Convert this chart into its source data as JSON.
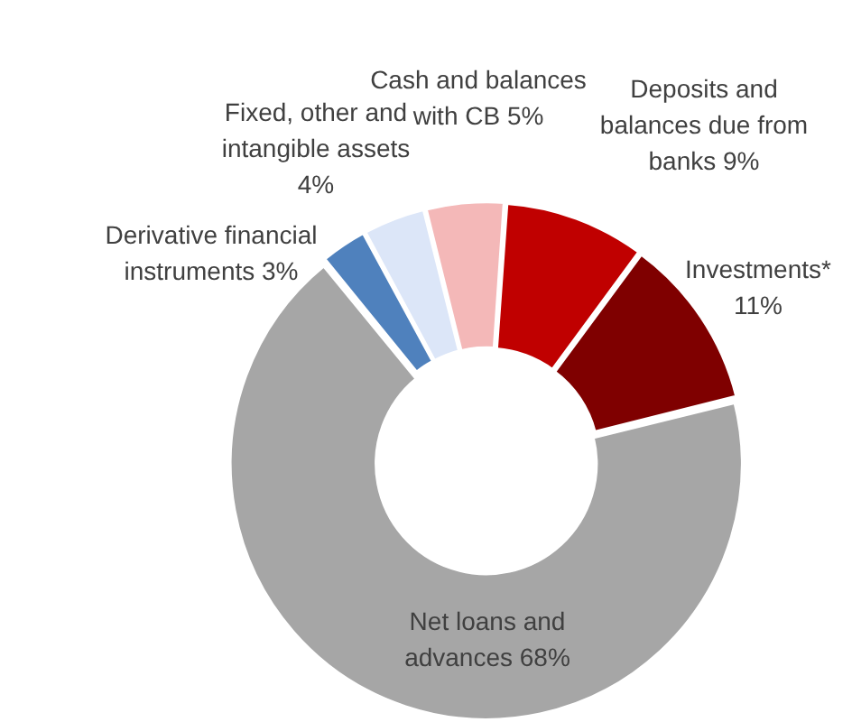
{
  "chart_data": {
    "type": "donut",
    "categories": [
      "Deposits and balances due from banks",
      "Investments*",
      "Net loans and advances",
      "Derivative financial instruments",
      "Fixed, other and intangible assets",
      "Cash and balances with CB"
    ],
    "values": [
      9,
      11,
      68,
      3,
      4,
      5
    ],
    "colors": [
      "#c00000",
      "#7f0000",
      "#a6a6a6",
      "#4f81bd",
      "#dce6f8",
      "#f4b8b8"
    ],
    "value_labels": [
      "9%",
      "11%",
      "68%",
      "3%",
      "4%",
      "5%"
    ],
    "legend": false
  }
}
